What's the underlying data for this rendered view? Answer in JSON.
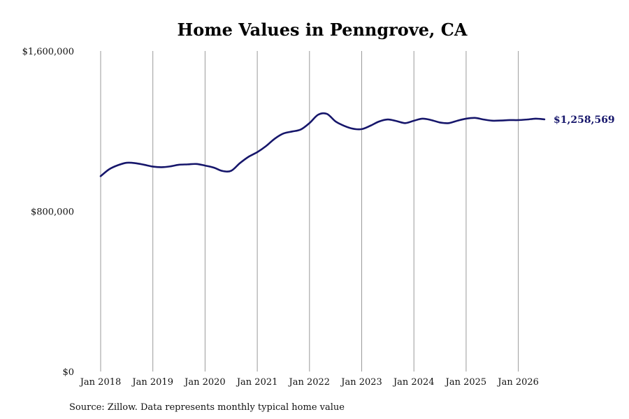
{
  "chart_data": {
    "type": "line",
    "title": "Home Values in Penngrove, CA",
    "xlabel": "",
    "ylabel": "",
    "ylim": [
      0,
      1600000
    ],
    "xlim": [
      "2018-01",
      "2026-07"
    ],
    "y_ticks": [
      "$0",
      "$800,000",
      "$1,600,000"
    ],
    "y_tick_values": [
      0,
      800000,
      1600000
    ],
    "x_ticks": [
      "Jan 2018",
      "Jan 2019",
      "Jan 2020",
      "Jan 2021",
      "Jan 2022",
      "Jan 2023",
      "Jan 2024",
      "Jan 2025",
      "Jan 2026"
    ],
    "x_tick_dates": [
      "2018-01",
      "2019-01",
      "2020-01",
      "2021-01",
      "2022-01",
      "2023-01",
      "2024-01",
      "2025-01",
      "2026-01"
    ],
    "grid": "vertical",
    "line_color": "#16166b",
    "end_label": "$1,258,569",
    "series": [
      {
        "name": "",
        "x": [
          "2018-01",
          "2018-03",
          "2018-05",
          "2018-07",
          "2018-09",
          "2018-11",
          "2019-01",
          "2019-03",
          "2019-05",
          "2019-07",
          "2019-09",
          "2019-11",
          "2020-01",
          "2020-03",
          "2020-05",
          "2020-07",
          "2020-09",
          "2020-11",
          "2021-01",
          "2021-03",
          "2021-05",
          "2021-07",
          "2021-09",
          "2021-11",
          "2022-01",
          "2022-03",
          "2022-05",
          "2022-07",
          "2022-09",
          "2022-11",
          "2023-01",
          "2023-03",
          "2023-05",
          "2023-07",
          "2023-09",
          "2023-11",
          "2024-01",
          "2024-03",
          "2024-05",
          "2024-07",
          "2024-09",
          "2024-11",
          "2025-01",
          "2025-03",
          "2025-05",
          "2025-07",
          "2025-09",
          "2025-11",
          "2026-01",
          "2026-03",
          "2026-05",
          "2026-07"
        ],
        "values": [
          975000,
          1010000,
          1030000,
          1042000,
          1040000,
          1032000,
          1023000,
          1020000,
          1024000,
          1032000,
          1034000,
          1036000,
          1028000,
          1018000,
          1001000,
          1002000,
          1040000,
          1072000,
          1095000,
          1125000,
          1162000,
          1188000,
          1198000,
          1208000,
          1240000,
          1282000,
          1286000,
          1248000,
          1226000,
          1212000,
          1210000,
          1227000,
          1248000,
          1258000,
          1250000,
          1240000,
          1252000,
          1262000,
          1255000,
          1243000,
          1240000,
          1252000,
          1262000,
          1266000,
          1258000,
          1252000,
          1253000,
          1255000,
          1255000,
          1258000,
          1262000,
          1258569
        ]
      }
    ]
  },
  "footer": {
    "source": "Source: Zillow. Data represents monthly typical home value"
  }
}
